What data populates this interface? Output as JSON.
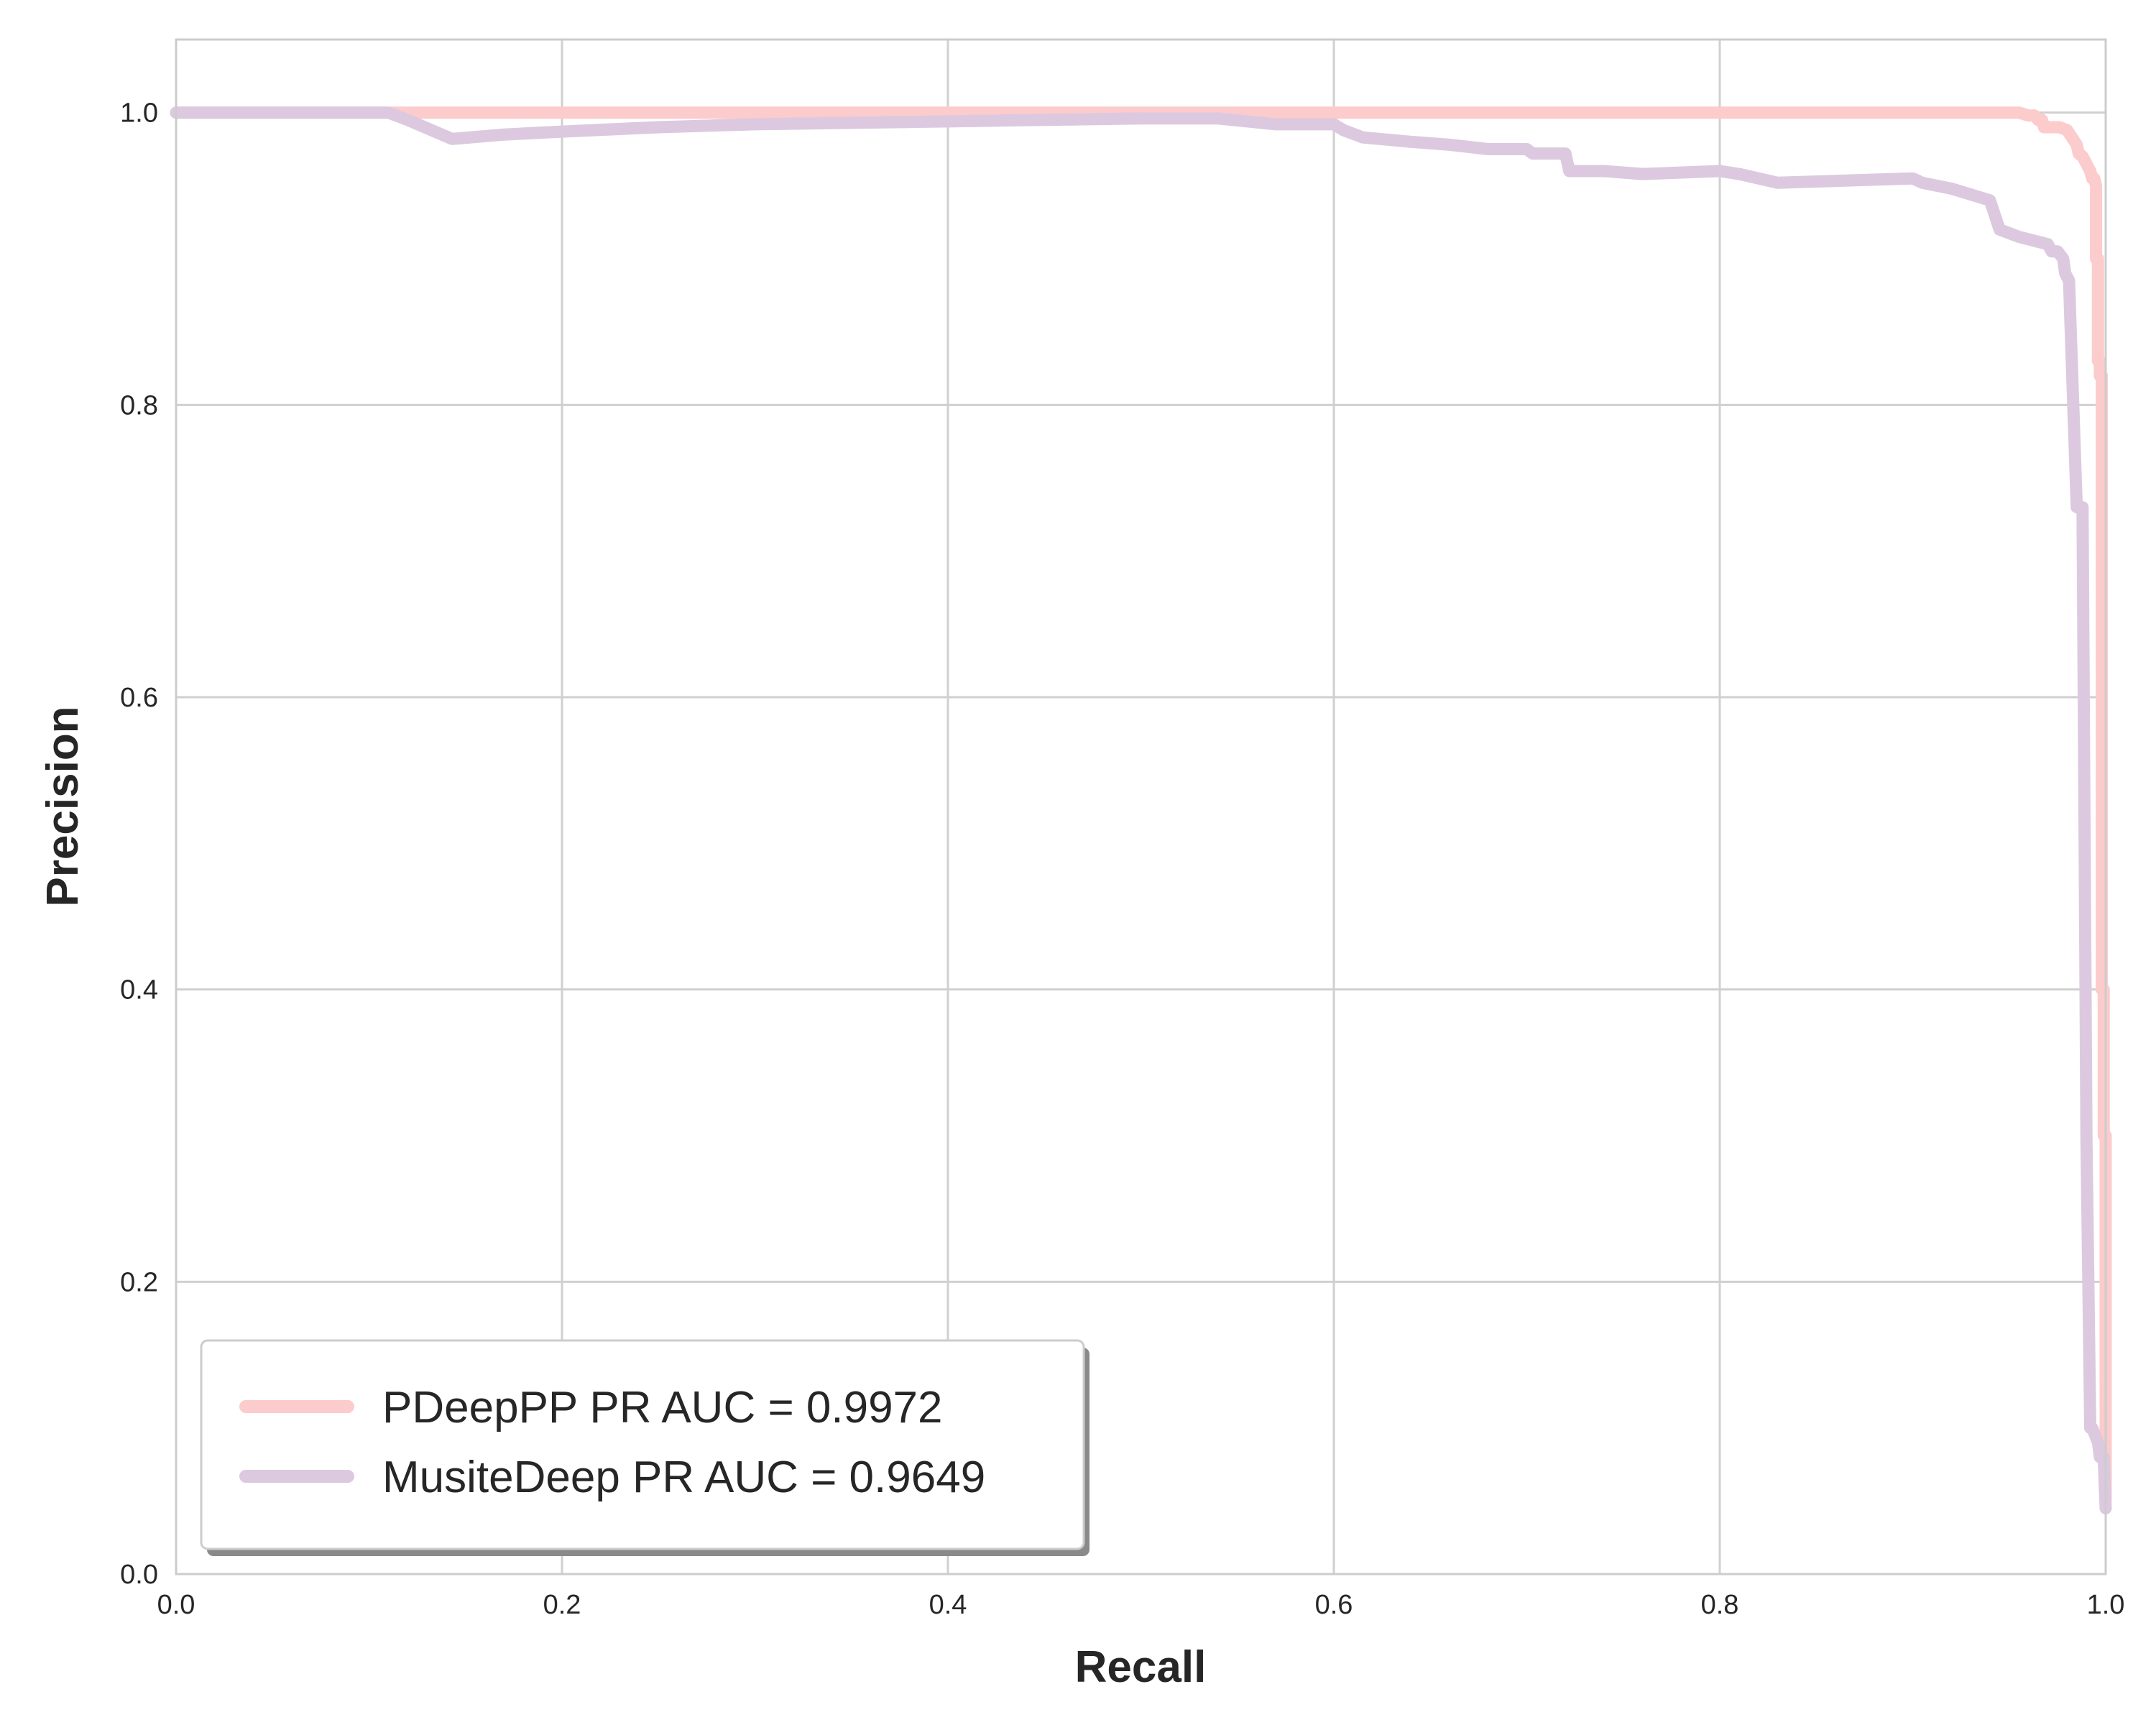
{
  "chart_data": {
    "type": "line",
    "title": "",
    "xlabel": "Recall",
    "ylabel": "Precision",
    "xlim": [
      0.0,
      1.0
    ],
    "ylim": [
      0.0,
      1.05
    ],
    "xticks": [
      0.0,
      0.2,
      0.4,
      0.6,
      0.8,
      1.0
    ],
    "xtick_labels": [
      "0.0",
      "0.2",
      "0.4",
      "0.6",
      "0.8",
      "1.0"
    ],
    "yticks": [
      0.0,
      0.2,
      0.4,
      0.6,
      0.8,
      1.0
    ],
    "ytick_labels": [
      "0.0",
      "0.2",
      "0.4",
      "0.6",
      "0.8",
      "1.0"
    ],
    "grid": true,
    "legend_position": "lower-left",
    "series": [
      {
        "name": "PDeepPP PR AUC = 0.9972",
        "color": "#fccbcb",
        "x": [
          0.0,
          0.955,
          0.96,
          0.963,
          0.965,
          0.967,
          0.968,
          0.976,
          0.98,
          0.983,
          0.985,
          0.986,
          0.988,
          0.99,
          0.992,
          0.993,
          0.994,
          0.995,
          0.995,
          0.996,
          0.996,
          0.997,
          0.997,
          0.998,
          0.998,
          0.999,
          0.999,
          1.0,
          1.0
        ],
        "y": [
          1.0,
          1.0,
          0.998,
          0.998,
          0.995,
          0.995,
          0.99,
          0.99,
          0.988,
          0.982,
          0.978,
          0.972,
          0.97,
          0.965,
          0.96,
          0.955,
          0.955,
          0.95,
          0.9,
          0.9,
          0.83,
          0.83,
          0.82,
          0.82,
          0.4,
          0.4,
          0.3,
          0.3,
          0.05
        ]
      },
      {
        "name": "MusiteDeep PR AUC = 0.9649",
        "color": "#dcc9e0",
        "x": [
          0.0,
          0.11,
          0.12,
          0.143,
          0.17,
          0.2,
          0.25,
          0.3,
          0.35,
          0.4,
          0.45,
          0.5,
          0.54,
          0.57,
          0.6,
          0.605,
          0.615,
          0.64,
          0.66,
          0.68,
          0.7,
          0.703,
          0.72,
          0.722,
          0.74,
          0.76,
          0.8,
          0.81,
          0.83,
          0.9,
          0.905,
          0.92,
          0.94,
          0.945,
          0.955,
          0.97,
          0.972,
          0.975,
          0.978,
          0.979,
          0.981,
          0.985,
          0.985,
          0.988,
          0.99,
          0.992,
          0.993,
          0.996,
          0.997,
          0.999,
          0.9995,
          1.0
        ],
        "y": [
          1.0,
          1.0,
          0.995,
          0.982,
          0.985,
          0.987,
          0.99,
          0.992,
          0.993,
          0.994,
          0.995,
          0.996,
          0.996,
          0.992,
          0.992,
          0.988,
          0.983,
          0.98,
          0.978,
          0.975,
          0.975,
          0.972,
          0.972,
          0.96,
          0.96,
          0.958,
          0.96,
          0.958,
          0.952,
          0.955,
          0.952,
          0.948,
          0.94,
          0.92,
          0.915,
          0.91,
          0.905,
          0.905,
          0.9,
          0.89,
          0.885,
          0.73,
          0.73,
          0.73,
          0.3,
          0.1,
          0.1,
          0.09,
          0.08,
          0.08,
          0.06,
          0.045
        ]
      }
    ]
  }
}
